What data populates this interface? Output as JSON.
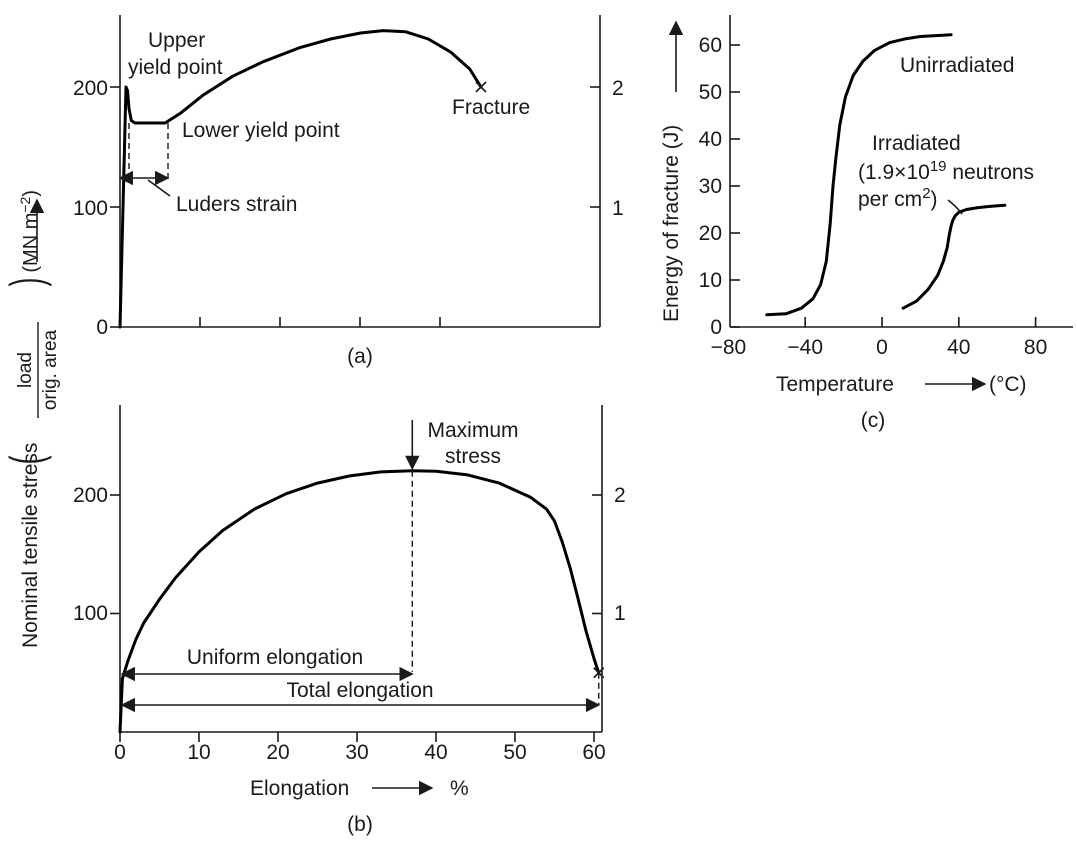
{
  "figure": {
    "ylabel_main": "Nominal tensile stress",
    "ylabel_frac_num": "load",
    "ylabel_frac_den": "orig. area",
    "ylabel_unit": "(MN m",
    "ylabel_unit_sup": "−2",
    "ylabel_unit_close": ")"
  },
  "chart_data": [
    {
      "id": "a",
      "type": "line",
      "caption": "(a)",
      "ylim": [
        0,
        260
      ],
      "yticks_left": [
        "0",
        "100",
        "200"
      ],
      "yticks_right": [
        "1",
        "2"
      ],
      "x_ticks_unlabeled": 4,
      "series": [
        {
          "x": [
            0,
            0.8,
            1.0,
            1.2,
            1.5,
            2.0,
            3,
            4.5,
            6,
            8,
            11,
            15,
            19,
            24,
            28,
            32,
            35,
            38,
            41,
            44,
            46.5,
            48
          ],
          "y": [
            0,
            200,
            197,
            182,
            172,
            170,
            170,
            170,
            170,
            178,
            193,
            209,
            221,
            233,
            240,
            245,
            247,
            246,
            240,
            229,
            215,
            200
          ]
        }
      ],
      "annotations": {
        "upper_yield_line1": "Upper",
        "upper_yield_line2": "yield point",
        "lower_yield": "Lower yield point",
        "luders": "Luders strain",
        "fracture": "Fracture"
      }
    },
    {
      "id": "b",
      "type": "line",
      "caption": "(b)",
      "xlabel": "Elongation",
      "xlabel_unit": "%",
      "xlim": [
        0,
        62
      ],
      "ylim": [
        0,
        280
      ],
      "xticks": [
        "0",
        "10",
        "20",
        "30",
        "40",
        "50",
        "60"
      ],
      "yticks_left": [
        "100",
        "200"
      ],
      "yticks_right": [
        "1",
        "2"
      ],
      "series": [
        {
          "x": [
            0,
            0.3,
            1,
            2,
            3,
            5,
            7,
            10,
            13,
            17,
            21,
            25,
            29,
            33,
            37,
            40,
            44,
            48,
            52,
            54,
            55,
            56,
            57,
            58,
            59,
            60,
            60.6
          ],
          "y": [
            0,
            45,
            60,
            78,
            92,
            112,
            130,
            152,
            170,
            188,
            201,
            210,
            216,
            219.5,
            220.5,
            220,
            217,
            210,
            198,
            188,
            178,
            160,
            138,
            112,
            85,
            62,
            50
          ]
        }
      ],
      "annotations": {
        "max_line1": "Maximum",
        "max_line2": "stress",
        "uniform": "Uniform elongation",
        "total": "Total elongation"
      }
    },
    {
      "id": "c",
      "type": "line",
      "caption": "(c)",
      "xlabel": "Temperature",
      "xlabel_unit": "(°C)",
      "ylabel": "Energy of fracture (J)",
      "xlim": [
        -100,
        100
      ],
      "ylim": [
        0,
        67
      ],
      "xticks": [
        "−80",
        "−40",
        "0",
        "40",
        "80"
      ],
      "yticks": [
        "0",
        "10",
        "20",
        "30",
        "40",
        "50",
        "60"
      ],
      "series": [
        {
          "name": "Unirradiated",
          "x": [
            -60,
            -50,
            -42,
            -36,
            -32,
            -29,
            -27,
            -25.5,
            -24,
            -22,
            -19,
            -15,
            -10,
            -4,
            4,
            12,
            20,
            28,
            36
          ],
          "y": [
            2.6,
            2.8,
            4,
            6,
            9,
            14,
            22,
            30,
            36,
            43,
            49,
            53.5,
            56.5,
            58.8,
            60.5,
            61.3,
            61.8,
            62,
            62.2
          ]
        },
        {
          "name": "Irradiated",
          "x": [
            11,
            18,
            24,
            29,
            32,
            34,
            35,
            36,
            37,
            38,
            40,
            44,
            50,
            57,
            64
          ],
          "y": [
            4,
            5.5,
            8,
            11,
            14,
            17,
            19.5,
            21.5,
            22.8,
            23.6,
            24.4,
            25,
            25.4,
            25.7,
            25.9
          ]
        }
      ],
      "annotations": {
        "unirr": "Unirradiated",
        "irr_line1": "Irradiated",
        "irr_line2_a": "(1.9×10",
        "irr_line2_sup": "19",
        "irr_line2_b": " neutrons",
        "irr_line3_a": "per cm",
        "irr_line3_sup": "2",
        "irr_line3_b": ")"
      }
    }
  ]
}
